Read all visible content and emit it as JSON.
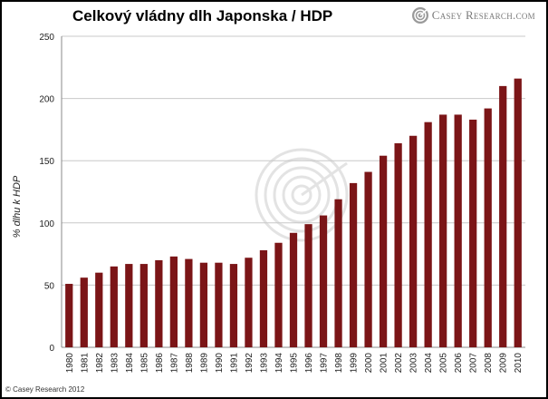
{
  "brand": {
    "name": "Casey Research.com",
    "copyright": "© Casey Research 2012",
    "logo_icon": "casey-research-spiral-logo"
  },
  "colors": {
    "bar": "#7b1517",
    "grid": "#c8c8c8",
    "axis": "#888888",
    "text": "#222222"
  },
  "chart_data": {
    "type": "bar",
    "title": "Celkový vládny dlh Japonska / HDP",
    "xlabel": "",
    "ylabel": "% dlhu k HDP",
    "ylim": [
      0,
      250
    ],
    "yticks": [
      0,
      50,
      100,
      150,
      200,
      250
    ],
    "grid": true,
    "categories": [
      "1980",
      "1981",
      "1982",
      "1983",
      "1984",
      "1985",
      "1986",
      "1987",
      "1988",
      "1989",
      "1990",
      "1991",
      "1992",
      "1993",
      "1994",
      "1995",
      "1996",
      "1997",
      "1998",
      "1999",
      "2000",
      "2001",
      "2002",
      "2003",
      "2004",
      "2005",
      "2006",
      "2007",
      "2008",
      "2009",
      "2010"
    ],
    "values": [
      51,
      56,
      60,
      65,
      67,
      67,
      70,
      73,
      71,
      68,
      68,
      67,
      72,
      78,
      84,
      92,
      99,
      106,
      119,
      132,
      141,
      154,
      164,
      170,
      181,
      187,
      187,
      183,
      192,
      210,
      216
    ]
  }
}
